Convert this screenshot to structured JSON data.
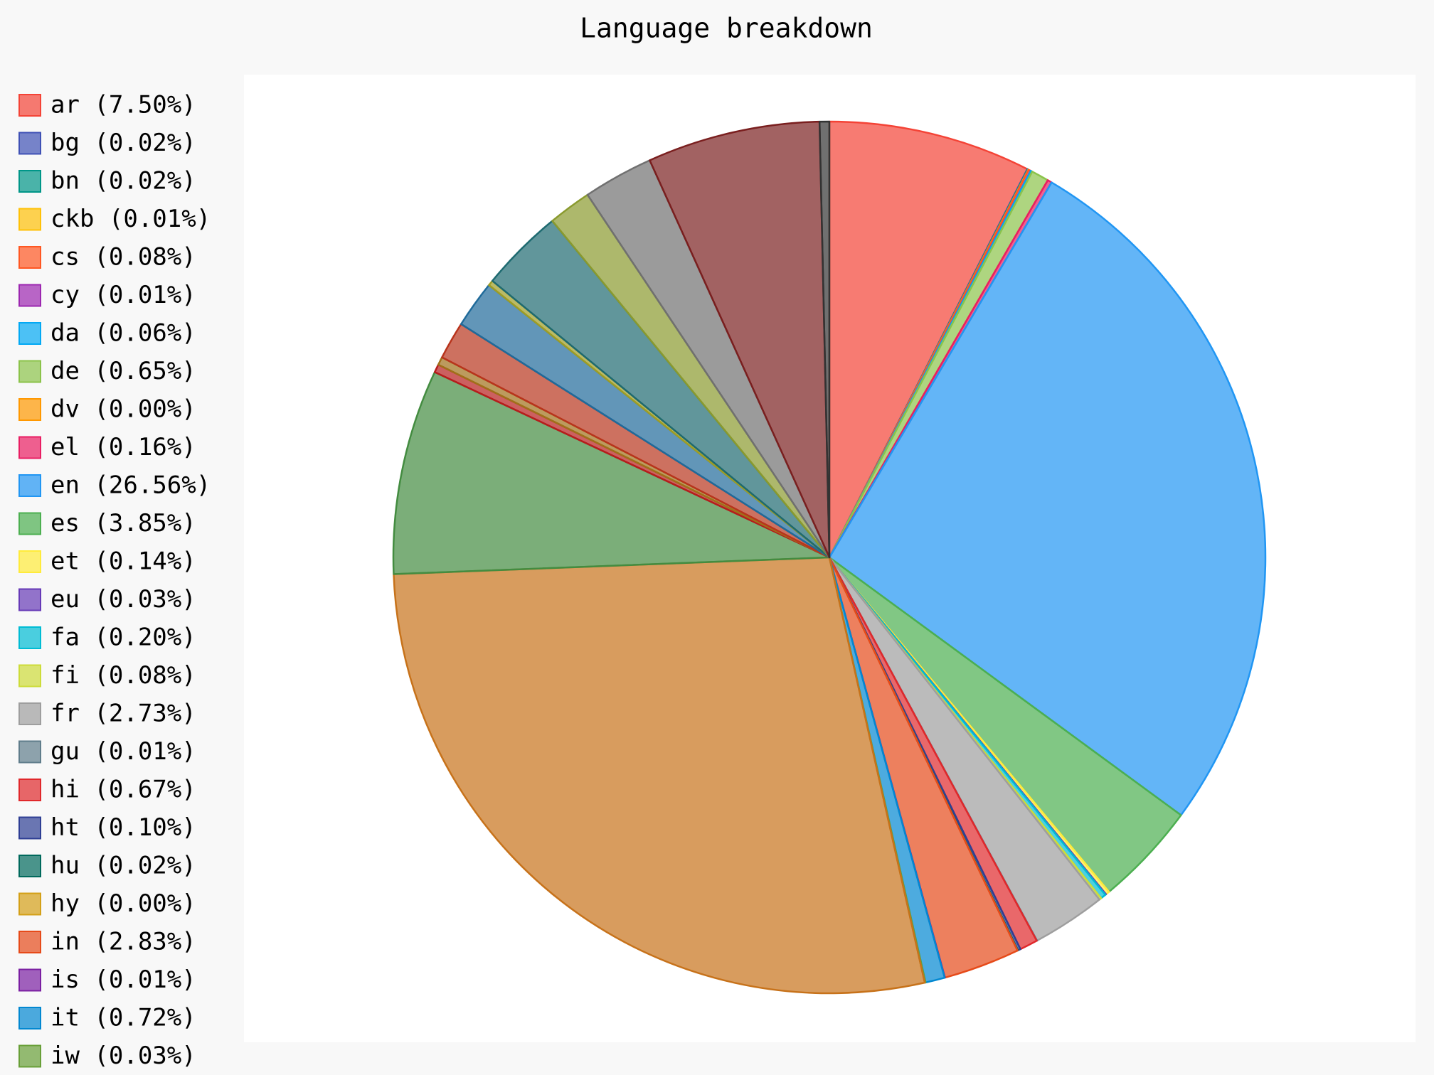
{
  "chart_data": {
    "type": "pie",
    "title": "Language breakdown",
    "categories": [
      "ar (7.50%)",
      "bg (0.02%)",
      "bn (0.02%)",
      "ckb (0.01%)",
      "cs (0.08%)",
      "cy (0.01%)",
      "da (0.06%)",
      "de (0.65%)",
      "dv (0.00%)",
      "el (0.16%)",
      "en (26.56%)",
      "es (3.85%)",
      "et (0.14%)",
      "eu (0.03%)",
      "fa (0.20%)",
      "fi (0.08%)",
      "fr (2.73%)",
      "gu (0.01%)",
      "hi (0.67%)",
      "ht (0.10%)",
      "hu (0.02%)",
      "hy (0.00%)",
      "in (2.83%)",
      "is (0.01%)",
      "it (0.72%)",
      "iw (0.03%)",
      null,
      null,
      null,
      null,
      null,
      null,
      null,
      null,
      null,
      null,
      null,
      null
    ],
    "values": [
      7.5,
      0.02,
      0.02,
      0.01,
      0.08,
      0.01,
      0.06,
      0.65,
      0,
      0.16,
      26.56,
      3.85,
      0.14,
      0.03,
      0.2,
      0.08,
      2.73,
      0.01,
      0.67,
      0.1,
      0.02,
      0,
      2.83,
      0.01,
      0.72,
      0.03,
      27.9,
      7.6,
      0.3,
      0.3,
      1.4,
      1.75,
      0.2,
      3.1,
      1.6,
      2.6,
      6.4,
      0.36
    ],
    "colors": [
      "#F44336",
      "#3F51B5",
      "#009688",
      "#FFC107",
      "#FF5722",
      "#9C27B0",
      "#03A9F4",
      "#8BC34A",
      "#FF9800",
      "#E91E63",
      "#2196F3",
      "#4CAF50",
      "#FFEB3B",
      "#673AB7",
      "#00BCD4",
      "#CDDC39",
      "#9E9E9E",
      "#607D8B",
      "#E0282B",
      "#2E3E94",
      "#00695C",
      "#D4A017",
      "#E64A19",
      "#7B1FA2",
      "#0288D1",
      "#689F38",
      "#C7721A",
      "#438C40",
      "#B71C1C",
      "#A0701A",
      "#B8341C",
      "#1F6A9A",
      "#9E9D24",
      "#1E6A70",
      "#8A9A2E",
      "#707070",
      "#7A1F1F",
      "#333333"
    ]
  }
}
